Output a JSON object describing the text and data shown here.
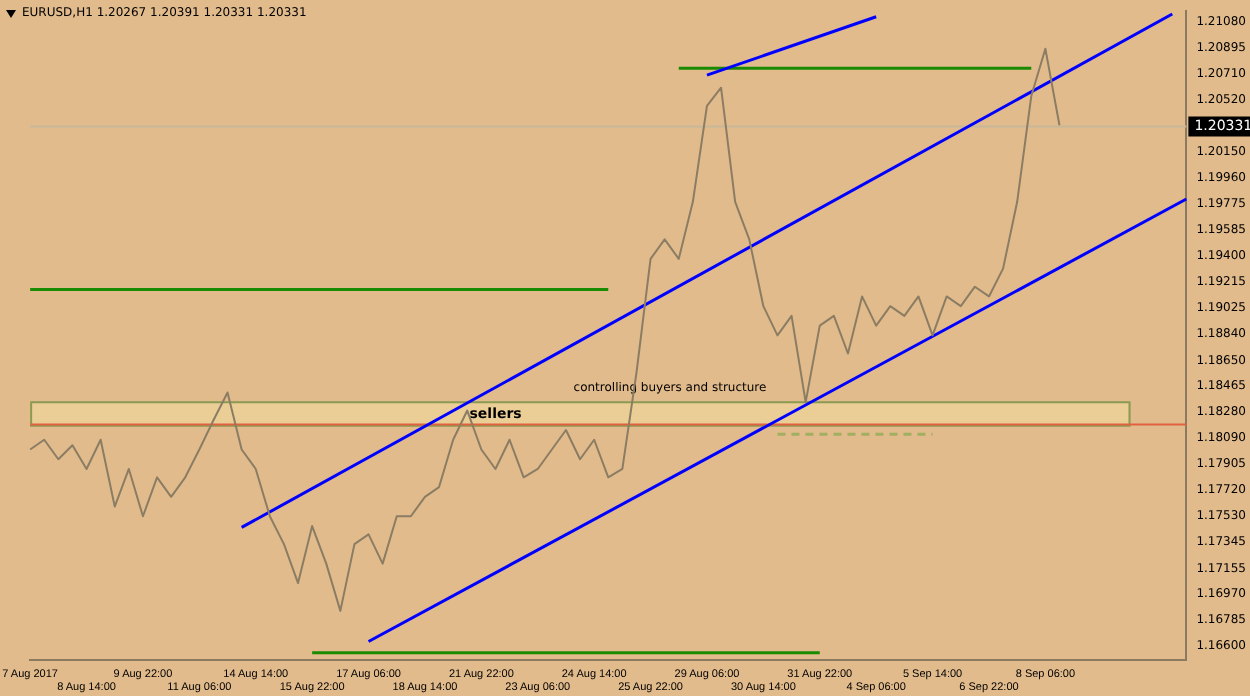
{
  "chart_data": {
    "type": "line",
    "title": "EURUSD,H1  1.20267 1.20391 1.20331 1.20331",
    "categories": [
      "7 Aug 2017",
      null,
      null,
      null,
      "8 Aug 14:00",
      null,
      null,
      null,
      "9 Aug 22:00",
      null,
      null,
      null,
      "11 Aug 06:00",
      null,
      null,
      null,
      "14 Aug 14:00",
      null,
      null,
      null,
      "15 Aug 22:00",
      null,
      null,
      null,
      "17 Aug 06:00",
      null,
      null,
      null,
      "18 Aug 14:00",
      null,
      null,
      null,
      "21 Aug 22:00",
      null,
      null,
      null,
      "23 Aug 06:00",
      null,
      null,
      null,
      "24 Aug 14:00",
      null,
      null,
      null,
      "25 Aug 22:00",
      null,
      null,
      null,
      "29 Aug 06:00",
      null,
      null,
      null,
      "30 Aug 14:00",
      null,
      null,
      null,
      "31 Aug 22:00",
      null,
      null,
      null,
      "4 Sep 06:00",
      null,
      null,
      null,
      "5 Sep 14:00",
      null,
      null,
      null,
      "6 Sep 22:00",
      null,
      null,
      null,
      "8 Sep 06:00",
      null,
      null,
      null,
      null,
      null,
      null,
      null,
      null,
      null,
      null
    ],
    "series": [
      {
        "color": "#8b7d63",
        "values": [
          1.1801,
          1.1808,
          1.1794,
          1.1804,
          1.1787,
          1.1808,
          1.176,
          1.1787,
          1.1753,
          1.1781,
          1.1767,
          1.1781,
          1.1801,
          1.1822,
          1.1842,
          1.1801,
          1.1787,
          1.1753,
          1.1733,
          1.1705,
          1.1746,
          1.1719,
          1.1685,
          1.1733,
          1.174,
          1.1719,
          1.1753,
          1.1753,
          1.1767,
          1.1774,
          1.1808,
          1.1829,
          1.1801,
          1.1787,
          1.1808,
          1.1781,
          1.1787,
          1.1801,
          1.1815,
          1.1794,
          1.1808,
          1.1781,
          1.1787,
          1.1856,
          1.1938,
          1.1952,
          1.1938,
          1.1979,
          1.2048,
          1.2061,
          1.1979,
          1.1952,
          1.1904,
          1.1883,
          1.1897,
          1.1835,
          1.189,
          1.1897,
          1.187,
          1.1911,
          1.189,
          1.1904,
          1.1897,
          1.1911,
          1.1883,
          1.1911,
          1.1904,
          1.1918,
          1.1911,
          1.1931,
          1.1979,
          1.2055,
          1.2089,
          1.2034,
          null,
          null,
          null,
          null,
          null,
          null,
          null,
          null,
          null
        ]
      },
      {
        "color": "#0000ff",
        "values": [
          null,
          null,
          null,
          null,
          null,
          null,
          null,
          null,
          null,
          null,
          null,
          null,
          null,
          null,
          null,
          1.1745,
          null,
          null,
          null,
          null,
          null,
          null,
          null,
          null,
          null,
          null,
          null,
          null,
          null,
          null,
          null,
          null,
          null,
          null,
          null,
          null,
          null,
          null,
          null,
          null,
          null,
          null,
          null,
          null,
          null,
          null,
          null,
          null,
          null,
          null,
          null,
          null,
          null,
          null,
          null,
          null,
          null,
          null,
          null,
          null,
          null,
          null,
          null,
          null,
          null,
          null,
          null,
          null,
          null,
          null,
          null,
          null,
          null,
          null,
          null,
          null,
          null,
          null,
          null,
          null,
          null,
          1.2114,
          null
        ]
      },
      {
        "color": "#0000ff",
        "values": [
          null,
          null,
          null,
          null,
          null,
          null,
          null,
          null,
          null,
          null,
          null,
          null,
          null,
          null,
          null,
          null,
          null,
          null,
          null,
          null,
          null,
          null,
          null,
          null,
          1.1663,
          null,
          null,
          null,
          null,
          null,
          null,
          null,
          null,
          null,
          null,
          null,
          null,
          null,
          null,
          null,
          null,
          null,
          null,
          null,
          null,
          null,
          null,
          null,
          null,
          null,
          null,
          null,
          null,
          null,
          null,
          null,
          null,
          null,
          null,
          null,
          null,
          null,
          null,
          null,
          null,
          null,
          null,
          null,
          null,
          null,
          null,
          null,
          null,
          null,
          null,
          null,
          null,
          null,
          null,
          null,
          null,
          null,
          1.1981
        ]
      },
      {
        "color": "#0000ff",
        "values": [
          null,
          null,
          null,
          null,
          null,
          null,
          null,
          null,
          null,
          null,
          null,
          null,
          null,
          null,
          null,
          null,
          null,
          null,
          null,
          null,
          null,
          null,
          null,
          null,
          null,
          null,
          null,
          null,
          null,
          null,
          null,
          null,
          null,
          null,
          null,
          null,
          null,
          null,
          null,
          null,
          null,
          null,
          null,
          null,
          null,
          null,
          null,
          null,
          1.207,
          null,
          null,
          null,
          null,
          null,
          null,
          null,
          null,
          null,
          null,
          null,
          1.2112,
          null,
          null,
          null,
          null,
          null,
          null,
          null,
          null,
          null,
          null,
          null,
          null,
          null,
          null,
          null,
          null,
          null,
          null,
          null,
          null,
          null,
          null
        ]
      },
      {
        "color": "#1a8a00",
        "values": [
          null,
          null,
          null,
          null,
          null,
          null,
          null,
          null,
          null,
          null,
          null,
          null,
          null,
          null,
          null,
          null,
          null,
          null,
          null,
          null,
          null,
          null,
          null,
          null,
          null,
          null,
          null,
          null,
          null,
          null,
          null,
          null,
          null,
          null,
          null,
          null,
          null,
          null,
          null,
          null,
          null,
          null,
          null,
          null,
          null,
          null,
          1.2075,
          null,
          null,
          null,
          null,
          null,
          null,
          null,
          null,
          null,
          null,
          null,
          null,
          null,
          null,
          null,
          null,
          null,
          null,
          null,
          null,
          null,
          null,
          null,
          null,
          1.2075,
          null,
          null,
          null,
          null,
          null,
          null,
          null,
          null,
          null,
          null,
          null
        ]
      },
      {
        "color": "#1a8a00",
        "values": [
          1.1916,
          null,
          null,
          null,
          null,
          null,
          null,
          null,
          null,
          null,
          null,
          null,
          null,
          null,
          null,
          null,
          null,
          null,
          null,
          null,
          null,
          null,
          null,
          null,
          null,
          null,
          null,
          null,
          null,
          null,
          null,
          null,
          null,
          null,
          null,
          null,
          null,
          null,
          null,
          null,
          null,
          1.1916,
          null,
          null,
          null,
          null,
          null,
          null,
          null,
          null,
          null,
          null,
          null,
          null,
          null,
          null,
          null,
          null,
          null,
          null,
          null,
          null,
          null,
          null,
          null,
          null,
          null,
          null,
          null,
          null,
          null,
          null,
          null,
          null,
          null,
          null,
          null,
          null,
          null,
          null,
          null,
          null,
          null
        ]
      },
      {
        "color": "#1a8a00",
        "values": [
          null,
          null,
          null,
          null,
          null,
          null,
          null,
          null,
          null,
          null,
          null,
          null,
          null,
          null,
          null,
          null,
          null,
          null,
          null,
          null,
          1.1655,
          null,
          null,
          null,
          null,
          null,
          null,
          null,
          null,
          null,
          null,
          null,
          null,
          null,
          null,
          null,
          null,
          null,
          null,
          null,
          null,
          null,
          null,
          null,
          null,
          null,
          null,
          null,
          null,
          null,
          null,
          null,
          null,
          null,
          null,
          null,
          1.1655,
          null,
          null,
          null,
          null,
          null,
          null,
          null,
          null,
          null,
          null,
          null,
          null,
          null,
          null,
          null,
          null,
          null,
          null,
          null,
          null,
          null,
          null,
          null,
          null,
          null,
          null
        ]
      },
      {
        "color": "#a0b060",
        "line_style": "dashed",
        "values": [
          null,
          null,
          null,
          null,
          null,
          null,
          null,
          null,
          null,
          null,
          null,
          null,
          null,
          null,
          null,
          null,
          null,
          null,
          null,
          null,
          null,
          null,
          null,
          null,
          null,
          null,
          null,
          null,
          null,
          null,
          null,
          null,
          null,
          null,
          null,
          null,
          null,
          null,
          null,
          null,
          null,
          null,
          null,
          null,
          null,
          null,
          null,
          null,
          null,
          null,
          null,
          null,
          null,
          1.1812,
          null,
          null,
          null,
          null,
          null,
          null,
          null,
          null,
          null,
          null,
          1.1812,
          null,
          null,
          null,
          null,
          null,
          null,
          null,
          null,
          null,
          null,
          null,
          null,
          null,
          null,
          null,
          null,
          null,
          null
        ]
      }
    ],
    "ylim": [
      1.165,
      1.2116
    ],
    "yticks": [
      {
        "value": 1.2108,
        "label": "1.21080"
      },
      {
        "value": 1.20895,
        "label": "1.20895"
      },
      {
        "value": 1.2071,
        "label": "1.20710"
      },
      {
        "value": 1.2052,
        "label": "1.20520"
      },
      {
        "value": 1.2015,
        "label": "1.20150"
      },
      {
        "value": 1.1996,
        "label": "1.19960"
      },
      {
        "value": 1.19775,
        "label": "1.19775"
      },
      {
        "value": 1.19585,
        "label": "1.19585"
      },
      {
        "value": 1.194,
        "label": "1.19400"
      },
      {
        "value": 1.19215,
        "label": "1.19215"
      },
      {
        "value": 1.19025,
        "label": "1.19025"
      },
      {
        "value": 1.1884,
        "label": "1.18840"
      },
      {
        "value": 1.1865,
        "label": "1.18650"
      },
      {
        "value": 1.18465,
        "label": "1.18465"
      },
      {
        "value": 1.1828,
        "label": "1.18280"
      },
      {
        "value": 1.1809,
        "label": "1.18090"
      },
      {
        "value": 1.17905,
        "label": "1.17905"
      },
      {
        "value": 1.1772,
        "label": "1.17720"
      },
      {
        "value": 1.1753,
        "label": "1.17530"
      },
      {
        "value": 1.17345,
        "label": "1.17345"
      },
      {
        "value": 1.17155,
        "label": "1.17155"
      },
      {
        "value": 1.1697,
        "label": "1.16970"
      },
      {
        "value": 1.16785,
        "label": "1.16785"
      },
      {
        "value": 1.166,
        "label": "1.16600"
      }
    ],
    "ref_lines": [
      {
        "axis": "y",
        "value": 1.20331,
        "label": "1.20331",
        "color": "#c8b89a"
      },
      {
        "axis": "y",
        "value": 1.1819,
        "color": "#e06040"
      }
    ],
    "bands": [
      {
        "axis": "y",
        "from": 1.1818,
        "to": 1.1835,
        "label": "sellers",
        "color": "#ebcd96"
      }
    ],
    "annotations": [
      "controlling buyers and structure"
    ],
    "legend": false,
    "grid": false,
    "marker": "none"
  }
}
